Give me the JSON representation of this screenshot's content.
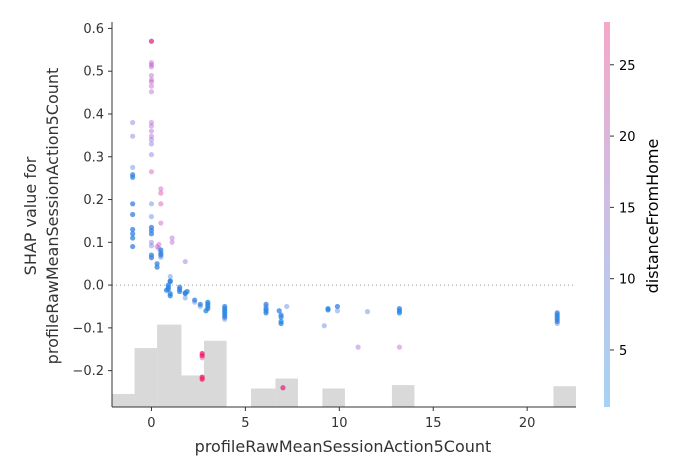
{
  "chart_data": {
    "type": "scatter",
    "xlabel": "profileRawMeanSessionAction5Count",
    "ylabel_lines": [
      "SHAP value for",
      "profileRawMeanSessionAction5Count"
    ],
    "colorbar_label": "distanceFromHome",
    "xlim": [
      -2.1,
      22.6
    ],
    "ylim": [
      -0.285,
      0.615
    ],
    "xticks": [
      0,
      5,
      10,
      15,
      20
    ],
    "yticks": [
      -0.2,
      -0.1,
      0.0,
      0.1,
      0.2,
      0.3,
      0.4,
      0.5,
      0.6
    ],
    "ytick_labels": [
      "−0.2",
      "−0.1",
      "0.0",
      "0.1",
      "0.2",
      "0.3",
      "0.4",
      "0.5",
      "0.6"
    ],
    "colorbar_range": [
      1,
      28
    ],
    "colorbar_ticks": [
      5,
      10,
      15,
      20,
      25
    ],
    "zero_line": true,
    "colors": {
      "low": "#a6d3f5",
      "high": "#f5a8c8",
      "dots_low": "#1e88e5",
      "dots_high": "#ff0d57",
      "histogram": "#d9d9d9"
    },
    "histogram": [
      {
        "x0": -2.1,
        "x1": -0.9,
        "h": 0.034
      },
      {
        "x0": -0.9,
        "x1": 0.3,
        "h": 0.153
      },
      {
        "x0": 0.3,
        "x1": 1.6,
        "h": 0.214
      },
      {
        "x0": 1.6,
        "x1": 2.8,
        "h": 0.082
      },
      {
        "x0": 2.8,
        "x1": 4.0,
        "h": 0.172
      },
      {
        "x0": 5.3,
        "x1": 6.6,
        "h": 0.048
      },
      {
        "x0": 6.6,
        "x1": 7.8,
        "h": 0.074
      },
      {
        "x0": 9.1,
        "x1": 10.3,
        "h": 0.048
      },
      {
        "x0": 12.8,
        "x1": 14.0,
        "h": 0.057
      },
      {
        "x0": 21.4,
        "x1": 22.6,
        "h": 0.054
      }
    ],
    "points": [
      {
        "x": -1.0,
        "y": 0.38,
        "c": 8
      },
      {
        "x": -1.0,
        "y": 0.348,
        "c": 8
      },
      {
        "x": -1.0,
        "y": 0.275,
        "c": 4
      },
      {
        "x": -1.0,
        "y": 0.258,
        "c": 3
      },
      {
        "x": -1.0,
        "y": 0.252,
        "c": 2
      },
      {
        "x": -1.0,
        "y": 0.19,
        "c": 3
      },
      {
        "x": -1.0,
        "y": 0.165,
        "c": 3
      },
      {
        "x": -1.0,
        "y": 0.13,
        "c": 3
      },
      {
        "x": -1.0,
        "y": 0.12,
        "c": 3
      },
      {
        "x": -1.0,
        "y": 0.11,
        "c": 2
      },
      {
        "x": -1.0,
        "y": 0.09,
        "c": 3
      },
      {
        "x": 0.0,
        "y": 0.57,
        "c": 22
      },
      {
        "x": 0.0,
        "y": 0.52,
        "c": 14
      },
      {
        "x": 0.0,
        "y": 0.515,
        "c": 15
      },
      {
        "x": 0.0,
        "y": 0.51,
        "c": 13
      },
      {
        "x": 0.0,
        "y": 0.49,
        "c": 12
      },
      {
        "x": 0.0,
        "y": 0.48,
        "c": 14
      },
      {
        "x": 0.0,
        "y": 0.475,
        "c": 15
      },
      {
        "x": 0.0,
        "y": 0.465,
        "c": 14
      },
      {
        "x": 0.0,
        "y": 0.452,
        "c": 12
      },
      {
        "x": 0.0,
        "y": 0.38,
        "c": 14
      },
      {
        "x": 0.0,
        "y": 0.372,
        "c": 12
      },
      {
        "x": 0.0,
        "y": 0.36,
        "c": 12
      },
      {
        "x": 0.0,
        "y": 0.348,
        "c": 12
      },
      {
        "x": 0.0,
        "y": 0.34,
        "c": 10
      },
      {
        "x": 0.0,
        "y": 0.33,
        "c": 9
      },
      {
        "x": 0.0,
        "y": 0.305,
        "c": 9
      },
      {
        "x": 0.0,
        "y": 0.265,
        "c": 17
      },
      {
        "x": 0.0,
        "y": 0.19,
        "c": 5
      },
      {
        "x": 0.0,
        "y": 0.16,
        "c": 4
      },
      {
        "x": 0.0,
        "y": 0.135,
        "c": 2
      },
      {
        "x": 0.0,
        "y": 0.128,
        "c": 3
      },
      {
        "x": 0.0,
        "y": 0.12,
        "c": 2
      },
      {
        "x": 0.0,
        "y": 0.1,
        "c": 8
      },
      {
        "x": 0.0,
        "y": 0.092,
        "c": 7
      },
      {
        "x": 0.0,
        "y": 0.07,
        "c": 2
      },
      {
        "x": 0.0,
        "y": 0.064,
        "c": 3
      },
      {
        "x": 0.5,
        "y": 0.225,
        "c": 16
      },
      {
        "x": 0.5,
        "y": 0.215,
        "c": 21
      },
      {
        "x": 0.5,
        "y": 0.19,
        "c": 18
      },
      {
        "x": 0.5,
        "y": 0.145,
        "c": 17
      },
      {
        "x": 0.3,
        "y": 0.09,
        "c": 14
      },
      {
        "x": 0.4,
        "y": 0.095,
        "c": 15
      },
      {
        "x": 0.4,
        "y": 0.085,
        "c": 11
      },
      {
        "x": 0.5,
        "y": 0.082,
        "c": 2
      },
      {
        "x": 0.5,
        "y": 0.075,
        "c": 2
      },
      {
        "x": 0.5,
        "y": 0.07,
        "c": 3
      },
      {
        "x": 0.5,
        "y": 0.065,
        "c": 4
      },
      {
        "x": 0.3,
        "y": 0.05,
        "c": 2
      },
      {
        "x": 0.3,
        "y": 0.042,
        "c": 3
      },
      {
        "x": 0.9,
        "y": 0.0,
        "c": 2
      },
      {
        "x": 0.9,
        "y": -0.005,
        "c": 2
      },
      {
        "x": 0.9,
        "y": -0.01,
        "c": 1
      },
      {
        "x": 0.8,
        "y": -0.012,
        "c": 2
      },
      {
        "x": 1.0,
        "y": 0.01,
        "c": 3
      },
      {
        "x": 1.0,
        "y": -0.02,
        "c": 2
      },
      {
        "x": 1.0,
        "y": -0.025,
        "c": 2
      },
      {
        "x": 1.0,
        "y": 0.02,
        "c": 4
      },
      {
        "x": 1.1,
        "y": 0.11,
        "c": 12
      },
      {
        "x": 1.1,
        "y": 0.1,
        "c": 13
      },
      {
        "x": 1.0,
        "y": 0.008,
        "c": 2
      },
      {
        "x": 1.5,
        "y": -0.005,
        "c": 2
      },
      {
        "x": 1.5,
        "y": -0.01,
        "c": 3
      },
      {
        "x": 1.5,
        "y": -0.015,
        "c": 1
      },
      {
        "x": 1.8,
        "y": -0.018,
        "c": 3
      },
      {
        "x": 1.8,
        "y": -0.02,
        "c": 2
      },
      {
        "x": 1.9,
        "y": -0.015,
        "c": 2
      },
      {
        "x": 1.8,
        "y": -0.03,
        "c": 4
      },
      {
        "x": 1.8,
        "y": 0.055,
        "c": 11
      },
      {
        "x": 2.3,
        "y": -0.035,
        "c": 3
      },
      {
        "x": 2.3,
        "y": -0.04,
        "c": 4
      },
      {
        "x": 2.6,
        "y": -0.045,
        "c": 2
      },
      {
        "x": 2.6,
        "y": -0.05,
        "c": 4
      },
      {
        "x": 2.7,
        "y": -0.16,
        "c": 25
      },
      {
        "x": 2.7,
        "y": -0.165,
        "c": 27
      },
      {
        "x": 2.7,
        "y": -0.17,
        "c": 20
      },
      {
        "x": 2.7,
        "y": -0.22,
        "c": 27
      },
      {
        "x": 2.7,
        "y": -0.215,
        "c": 25
      },
      {
        "x": 3.0,
        "y": -0.04,
        "c": 2
      },
      {
        "x": 3.0,
        "y": -0.045,
        "c": 1
      },
      {
        "x": 3.0,
        "y": -0.05,
        "c": 2
      },
      {
        "x": 3.0,
        "y": -0.055,
        "c": 3
      },
      {
        "x": 2.9,
        "y": -0.06,
        "c": 1
      },
      {
        "x": 3.9,
        "y": -0.05,
        "c": 2
      },
      {
        "x": 3.9,
        "y": -0.055,
        "c": 1
      },
      {
        "x": 3.9,
        "y": -0.06,
        "c": 2
      },
      {
        "x": 3.9,
        "y": -0.065,
        "c": 1
      },
      {
        "x": 3.9,
        "y": -0.07,
        "c": 2
      },
      {
        "x": 3.9,
        "y": -0.075,
        "c": 3
      },
      {
        "x": 3.9,
        "y": -0.08,
        "c": 4
      },
      {
        "x": 6.1,
        "y": -0.045,
        "c": 3
      },
      {
        "x": 6.1,
        "y": -0.05,
        "c": 4
      },
      {
        "x": 6.1,
        "y": -0.055,
        "c": 1
      },
      {
        "x": 6.1,
        "y": -0.06,
        "c": 2
      },
      {
        "x": 6.1,
        "y": -0.065,
        "c": 3
      },
      {
        "x": 6.8,
        "y": -0.06,
        "c": 3
      },
      {
        "x": 6.9,
        "y": -0.07,
        "c": 2
      },
      {
        "x": 6.9,
        "y": -0.075,
        "c": 2
      },
      {
        "x": 6.9,
        "y": -0.085,
        "c": 1
      },
      {
        "x": 6.9,
        "y": -0.09,
        "c": 1
      },
      {
        "x": 7.0,
        "y": -0.24,
        "c": 22
      },
      {
        "x": 7.2,
        "y": -0.05,
        "c": 4
      },
      {
        "x": 9.2,
        "y": -0.095,
        "c": 5
      },
      {
        "x": 9.4,
        "y": -0.055,
        "c": 1
      },
      {
        "x": 9.4,
        "y": -0.058,
        "c": 2
      },
      {
        "x": 9.9,
        "y": -0.05,
        "c": 3
      },
      {
        "x": 9.9,
        "y": -0.06,
        "c": 4
      },
      {
        "x": 11.0,
        "y": -0.145,
        "c": 11
      },
      {
        "x": 11.5,
        "y": -0.062,
        "c": 4
      },
      {
        "x": 13.2,
        "y": -0.055,
        "c": 3
      },
      {
        "x": 13.2,
        "y": -0.06,
        "c": 2
      },
      {
        "x": 13.2,
        "y": -0.065,
        "c": 1
      },
      {
        "x": 13.2,
        "y": -0.145,
        "c": 15
      },
      {
        "x": 21.6,
        "y": -0.065,
        "c": 3
      },
      {
        "x": 21.6,
        "y": -0.07,
        "c": 2
      },
      {
        "x": 21.6,
        "y": -0.075,
        "c": 1
      },
      {
        "x": 21.6,
        "y": -0.08,
        "c": 2
      },
      {
        "x": 21.6,
        "y": -0.085,
        "c": 3
      },
      {
        "x": 21.6,
        "y": -0.09,
        "c": 4
      }
    ]
  }
}
